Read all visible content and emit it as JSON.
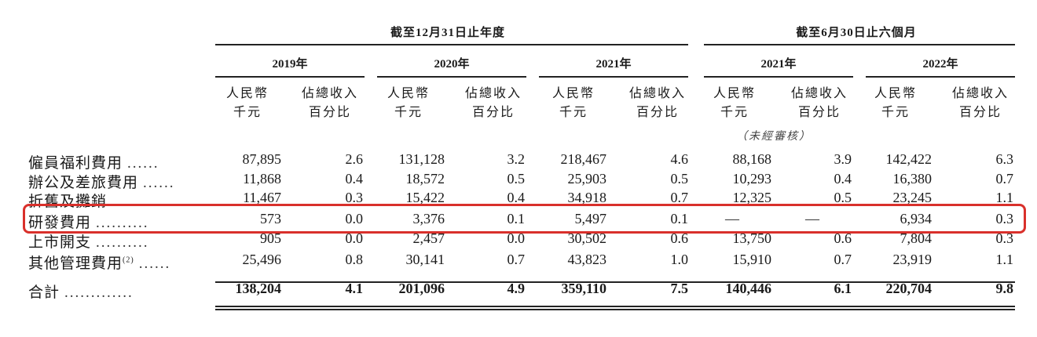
{
  "header": {
    "fy_group": "截至12月31日止年度",
    "half_group": "截至6月30日止六個月",
    "years": [
      "2019年",
      "2020年",
      "2021年",
      "2021年",
      "2022年"
    ],
    "unit_amount": [
      "人民幣",
      "千元"
    ],
    "unit_pct": [
      "佔總收入",
      "百分比"
    ],
    "unaudited": "（未經審核）"
  },
  "rows": [
    {
      "label": "僱員福利費用",
      "values": [
        "87,895",
        "2.6",
        "131,128",
        "3.2",
        "218,467",
        "4.6",
        "88,168",
        "3.9",
        "142,422",
        "6.3"
      ]
    },
    {
      "label": "辦公及差旅費用",
      "values": [
        "11,868",
        "0.4",
        "18,572",
        "0.5",
        "25,903",
        "0.5",
        "10,293",
        "0.4",
        "16,380",
        "0.7"
      ]
    },
    {
      "label": "折舊及攤銷",
      "values": [
        "11,467",
        "0.3",
        "15,422",
        "0.4",
        "34,918",
        "0.7",
        "12,325",
        "0.5",
        "23,245",
        "1.1"
      ]
    },
    {
      "label": "研發費用",
      "values": [
        "573",
        "0.0",
        "3,376",
        "0.1",
        "5,497",
        "0.1",
        "—",
        "—",
        "6,934",
        "0.3"
      ]
    },
    {
      "label": "上市開支",
      "values": [
        "905",
        "0.0",
        "2,457",
        "0.0",
        "30,502",
        "0.6",
        "13,750",
        "0.6",
        "7,804",
        "0.3"
      ]
    },
    {
      "label": "其他管理費用",
      "note_mark": "(2)",
      "values": [
        "25,496",
        "0.8",
        "30,141",
        "0.7",
        "43,823",
        "1.0",
        "15,910",
        "0.7",
        "23,919",
        "1.1"
      ]
    }
  ],
  "total": {
    "label": "合計",
    "values": [
      "138,204",
      "4.1",
      "201,096",
      "4.9",
      "359,110",
      "7.5",
      "140,446",
      "6.1",
      "220,704",
      "9.8"
    ]
  },
  "highlight_color": "#d9302b"
}
